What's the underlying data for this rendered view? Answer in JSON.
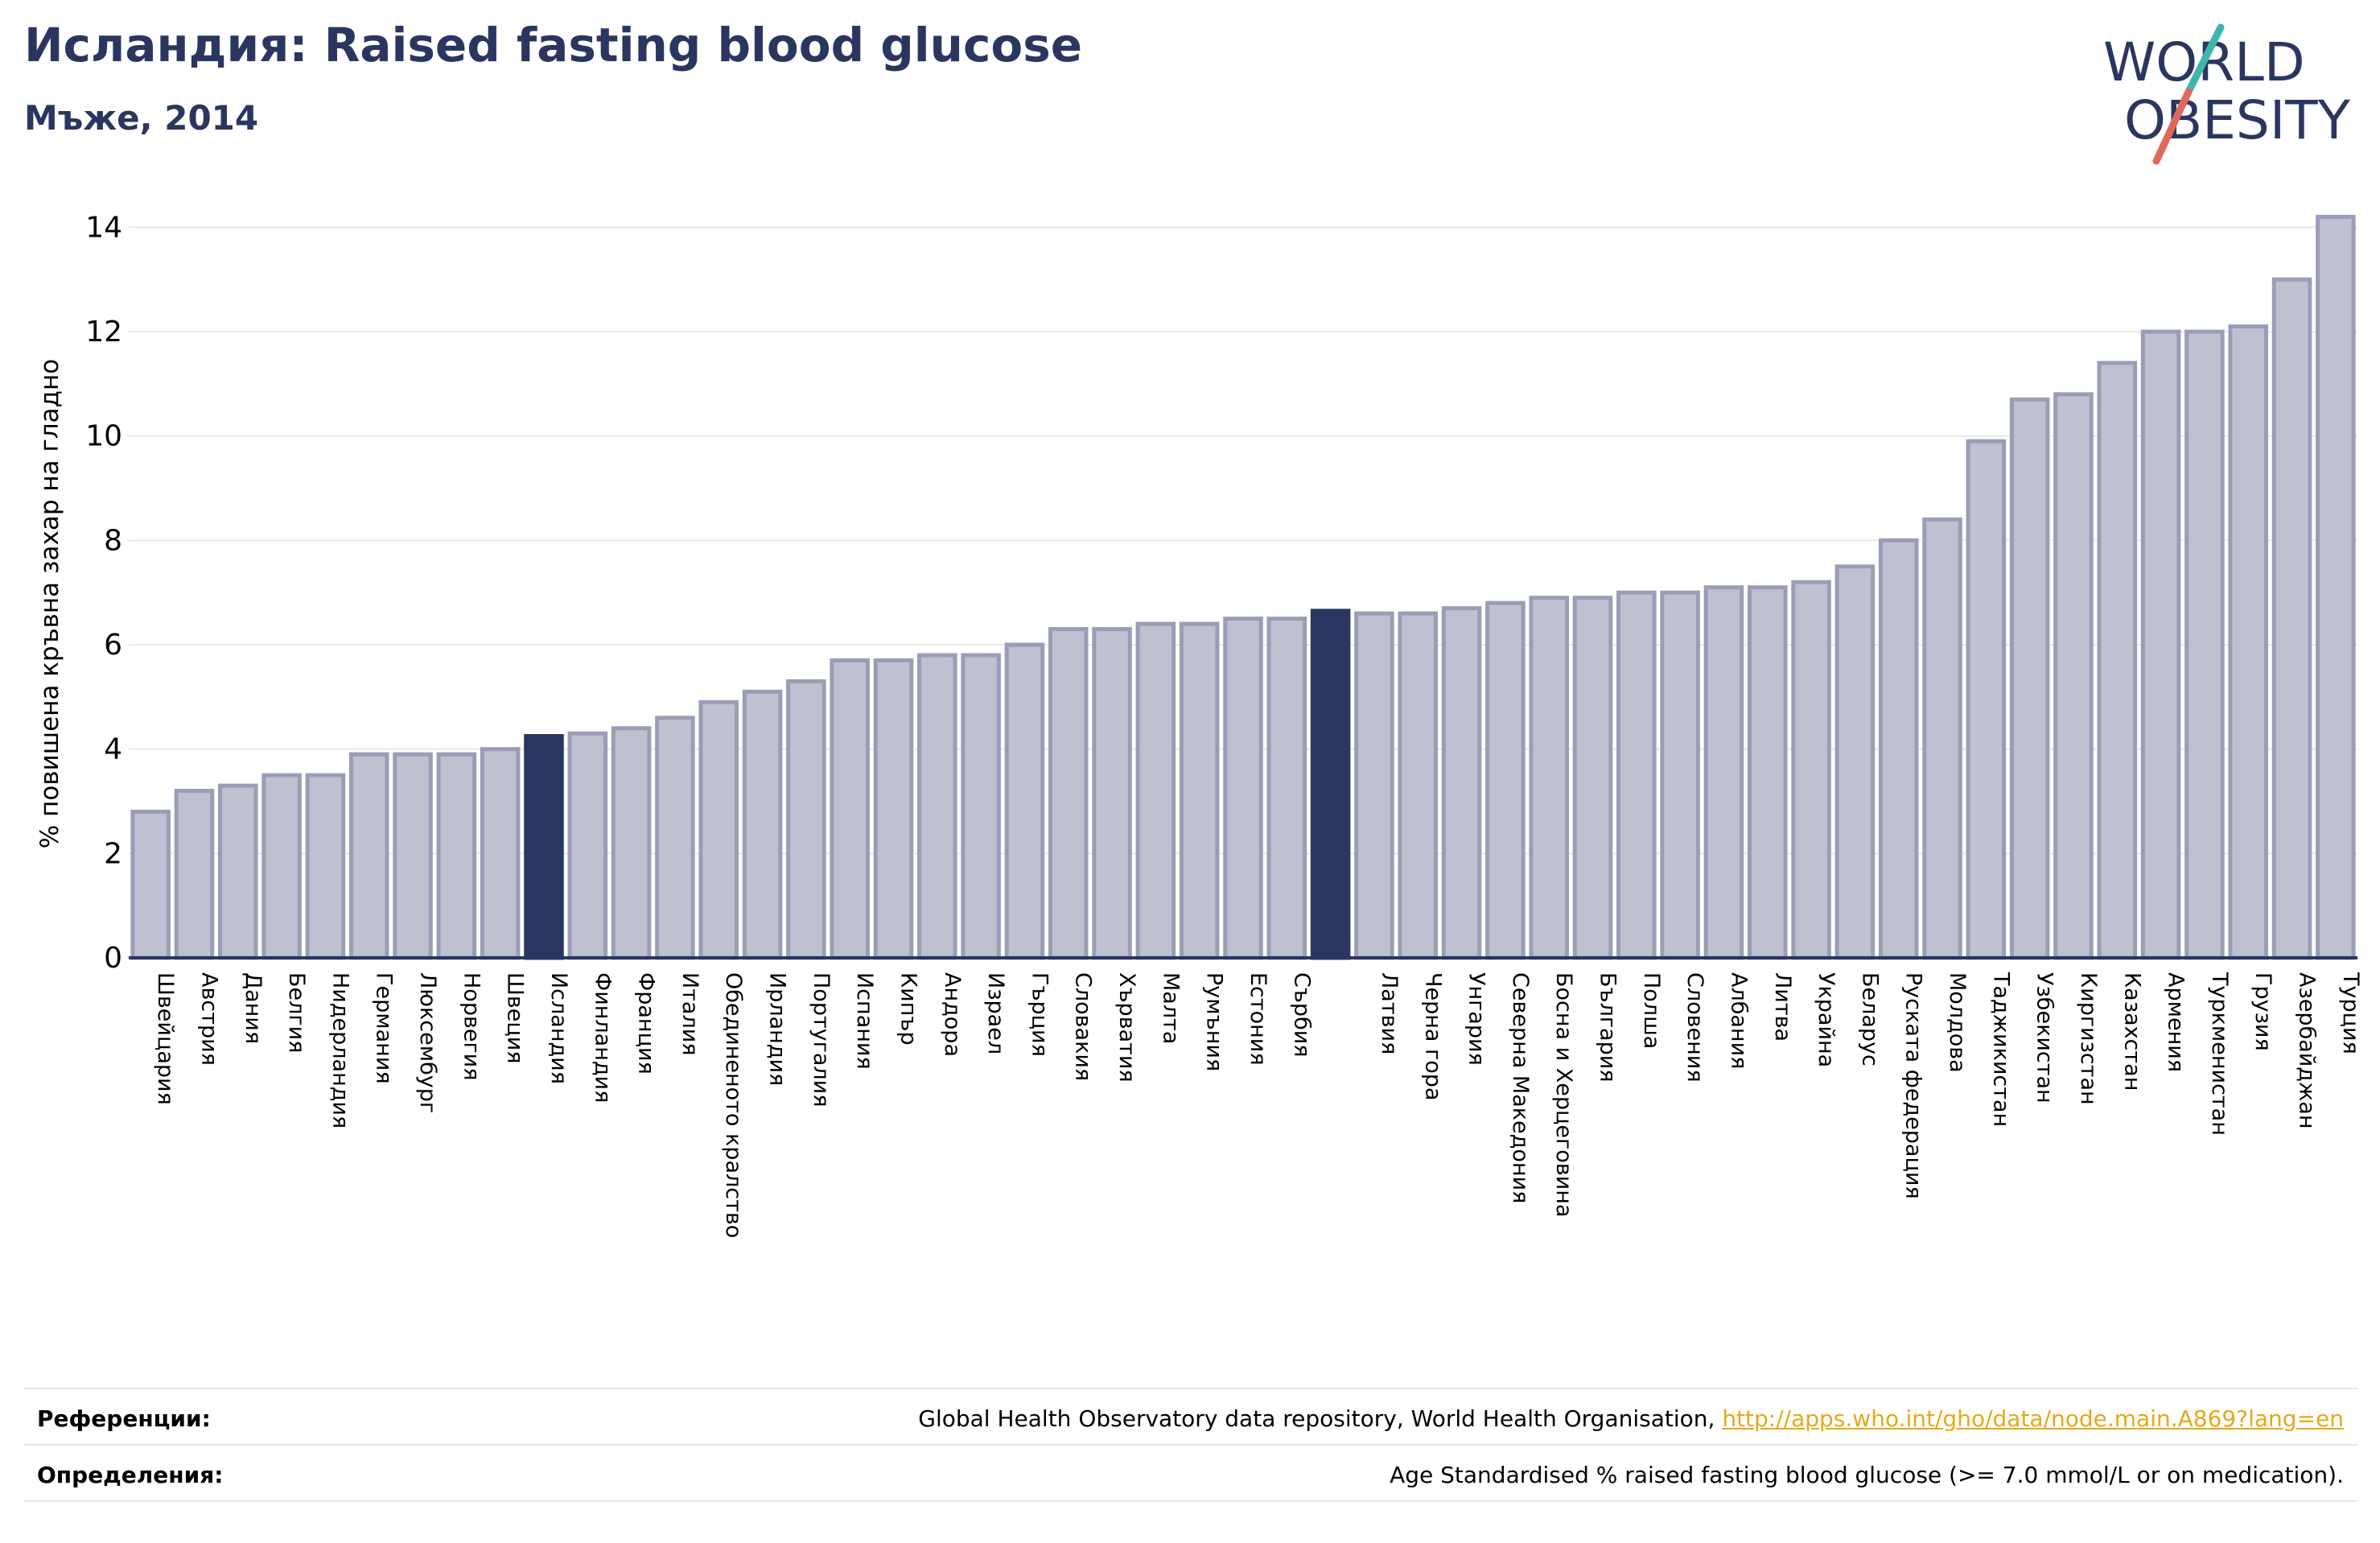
{
  "header": {
    "title": "Исландия: Raised fasting blood glucose",
    "subtitle": "Мъже, 2014"
  },
  "logo": {
    "line1": "WORLD",
    "line2": "OBESITY",
    "colors": {
      "text": "#2b3660",
      "accent_teal": "#3fb5b0",
      "accent_red": "#e0685a"
    }
  },
  "colors": {
    "bar": "#bfc1d0",
    "bar_edge": "#9a9db5",
    "highlight": "#2b3660",
    "grid": "#e8e8e8",
    "axis": "#2b3660"
  },
  "chart_data": {
    "type": "bar",
    "title": "",
    "xlabel": "",
    "ylabel": "% повишена кръвна захар на гладно",
    "ylim": [
      0,
      14.5
    ],
    "yticks": [
      0,
      2,
      4,
      6,
      8,
      10,
      12,
      14
    ],
    "grid": true,
    "categories": [
      "Швейцария",
      "Австрия",
      "Дания",
      "Белгия",
      "Нидерландия",
      "Германия",
      "Люксембург",
      "Норвегия",
      "Швеция",
      "Исландия",
      "Финландия",
      "Франция",
      "Италия",
      "Обединеното кралство",
      "Ирландия",
      "Португалия",
      "Испания",
      "Кипър",
      "Андора",
      "Израел",
      "Гърция",
      "Словакия",
      "Хърватия",
      "Малта",
      "Румъния",
      "Естония",
      "Сърбия",
      "",
      "Латвия",
      "Черна гора",
      "Унгария",
      "Северна Македония",
      "Босна и Херцеговина",
      "България",
      "Полша",
      "Словения",
      "Албания",
      "Литва",
      "Украйна",
      "Беларус",
      "Руската федерация",
      "Молдова",
      "Таджикистан",
      "Узбекистан",
      "Киргизстан",
      "Казахстан",
      "Армения",
      "Туркменистан",
      "Грузия",
      "Азербайджан",
      "Турция"
    ],
    "values": [
      2.8,
      3.2,
      3.3,
      3.5,
      3.5,
      3.9,
      3.9,
      3.9,
      4.0,
      4.25,
      4.3,
      4.4,
      4.6,
      4.9,
      5.1,
      5.3,
      5.7,
      5.7,
      5.8,
      5.8,
      6.0,
      6.3,
      6.3,
      6.4,
      6.4,
      6.5,
      6.5,
      6.65,
      6.6,
      6.6,
      6.7,
      6.8,
      6.9,
      6.9,
      7.0,
      7.0,
      7.1,
      7.1,
      7.2,
      7.5,
      8.0,
      8.4,
      9.9,
      10.7,
      10.8,
      11.4,
      12.0,
      12.0,
      12.1,
      13.0,
      14.2
    ],
    "highlighted": [
      9,
      27
    ]
  },
  "footer": {
    "references_label": "Референции:",
    "references_text": "Global Health Observatory data repository, World Health Organisation, ",
    "references_link": "http://apps.who.int/gho/data/node.main.A869?lang=en",
    "definitions_label": "Определения:",
    "definitions_text": "Age Standardised % raised fasting blood glucose (>= 7.0 mmol/L or on medication)."
  }
}
